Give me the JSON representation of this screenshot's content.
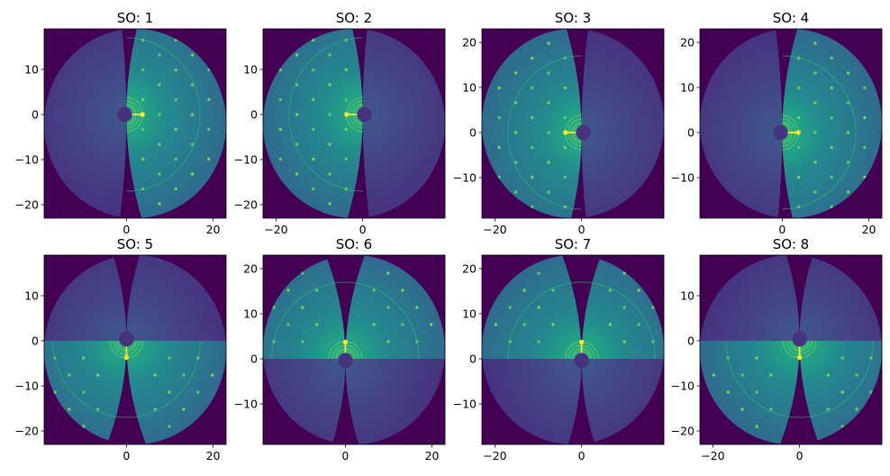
{
  "figure": {
    "panels": [
      {
        "title": "SO: 1"
      },
      {
        "title": "SO: 2"
      },
      {
        "title": "SO: 3"
      },
      {
        "title": "SO: 4"
      },
      {
        "title": "SO: 5"
      },
      {
        "title": "SO: 6"
      },
      {
        "title": "SO: 7"
      },
      {
        "title": "SO: 8"
      }
    ]
  },
  "chart_data": [
    {
      "type": "heatmap",
      "title": "SO: 1",
      "colormap": "viridis",
      "xlim": [
        -19,
        23
      ],
      "ylim": [
        -23,
        19
      ],
      "xticks": [
        0,
        20
      ],
      "yticks": [
        -20,
        -10,
        0,
        10
      ],
      "bright_side": "right",
      "split": "curved"
    },
    {
      "type": "heatmap",
      "title": "SO: 2",
      "colormap": "viridis",
      "xlim": [
        -23,
        19
      ],
      "ylim": [
        -23,
        19
      ],
      "xticks": [
        -20,
        0
      ],
      "yticks": [
        -20,
        -10,
        0,
        10
      ],
      "bright_side": "left",
      "split": "curved"
    },
    {
      "type": "heatmap",
      "title": "SO: 3",
      "colormap": "viridis",
      "xlim": [
        -23,
        19
      ],
      "ylim": [
        -19,
        23
      ],
      "xticks": [
        -20,
        0
      ],
      "yticks": [
        -10,
        0,
        10,
        20
      ],
      "bright_side": "left",
      "split": "curved"
    },
    {
      "type": "heatmap",
      "title": "SO: 4",
      "colormap": "viridis",
      "xlim": [
        -19,
        23
      ],
      "ylim": [
        -19,
        23
      ],
      "xticks": [
        0,
        20
      ],
      "yticks": [
        -10,
        0,
        10,
        20
      ],
      "bright_side": "right",
      "split": "curved"
    },
    {
      "type": "heatmap",
      "title": "SO: 5",
      "colormap": "viridis",
      "xlim": [
        -19,
        23
      ],
      "ylim": [
        -23,
        19
      ],
      "xticks": [
        0,
        20
      ],
      "yticks": [
        -20,
        -10,
        0,
        10
      ],
      "bright_side": "bottom",
      "split": "straight"
    },
    {
      "type": "heatmap",
      "title": "SO: 6",
      "colormap": "viridis",
      "xlim": [
        -19,
        23
      ],
      "ylim": [
        -19,
        23
      ],
      "xticks": [
        0,
        20
      ],
      "yticks": [
        -10,
        0,
        10,
        20
      ],
      "bright_side": "top",
      "split": "straight"
    },
    {
      "type": "heatmap",
      "title": "SO: 7",
      "colormap": "viridis",
      "xlim": [
        -23,
        19
      ],
      "ylim": [
        -19,
        23
      ],
      "xticks": [
        -20,
        0
      ],
      "yticks": [
        -10,
        0,
        10,
        20
      ],
      "bright_side": "top",
      "split": "straight"
    },
    {
      "type": "heatmap",
      "title": "SO: 8",
      "colormap": "viridis",
      "xlim": [
        -23,
        19
      ],
      "ylim": [
        -23,
        19
      ],
      "xticks": [
        -20,
        0
      ],
      "yticks": [
        -20,
        -10,
        0,
        10
      ],
      "bright_side": "bottom",
      "split": "straight"
    }
  ]
}
